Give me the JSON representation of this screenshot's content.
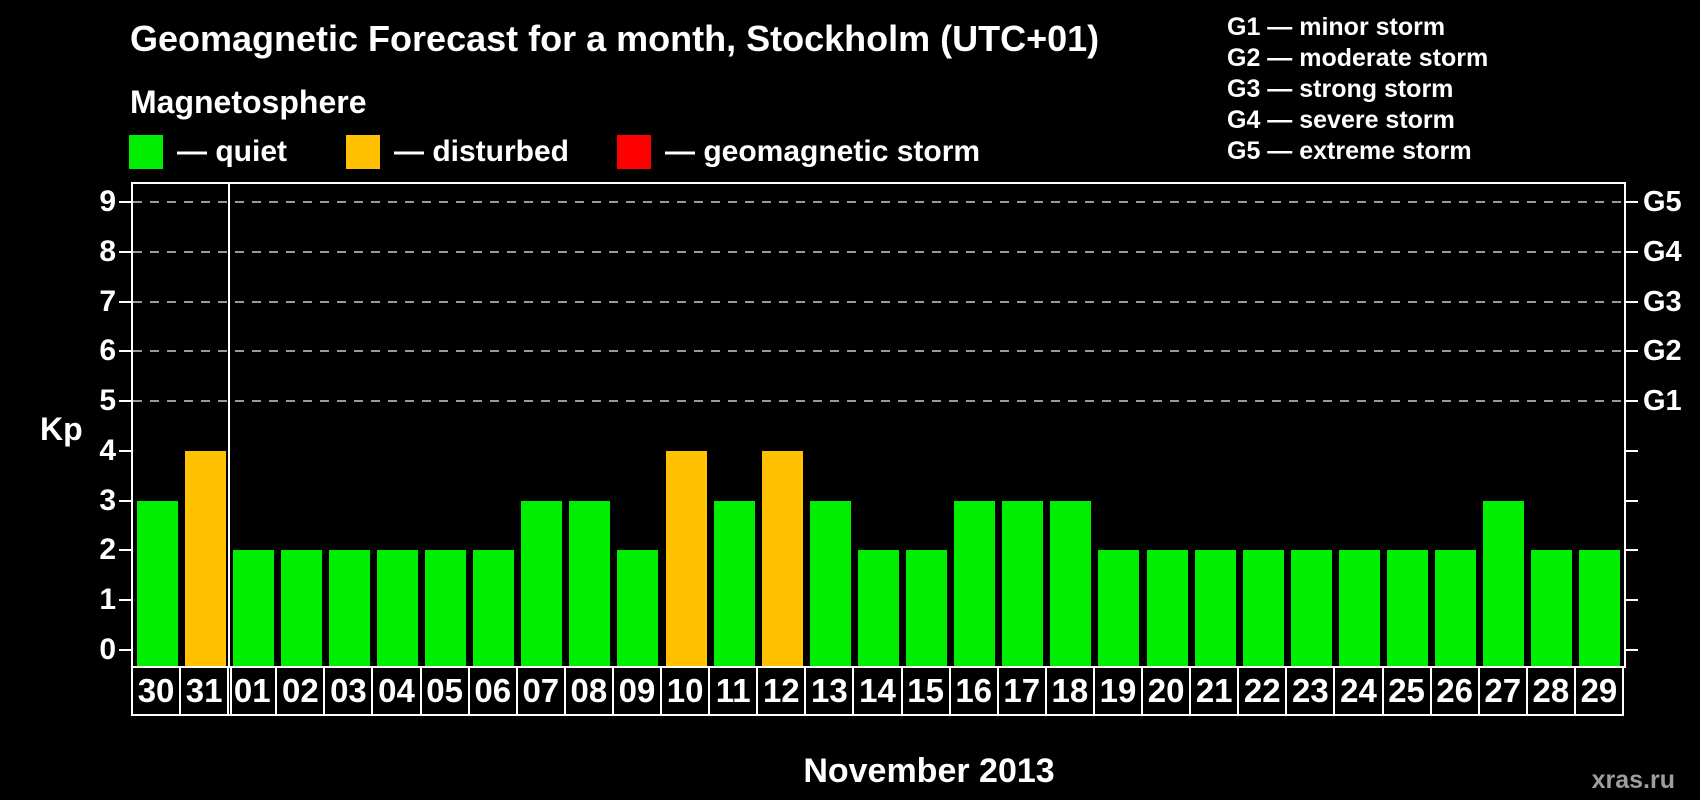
{
  "title": "Geomagnetic Forecast for a month, Stockholm (UTC+01)",
  "subtitle": "Magnetosphere",
  "legend": {
    "items": [
      {
        "name": "quiet",
        "label": "— quiet",
        "color": "#00ee00"
      },
      {
        "name": "disturbed",
        "label": "— disturbed",
        "color": "#ffc100"
      },
      {
        "name": "storm",
        "label": "— geomagnetic storm",
        "color": "#ff0000"
      }
    ]
  },
  "storm_scale": [
    "G1 — minor storm",
    "G2 — moderate storm",
    "G3 — strong storm",
    "G4 — severe storm",
    "G5 — extreme storm"
  ],
  "watermark": "xras.ru",
  "chart_data": {
    "type": "bar",
    "title": "Geomagnetic Forecast for a month, Stockholm (UTC+01)",
    "ylabel": "Kp",
    "xlabel": "November 2013",
    "categories": [
      "30",
      "31",
      "01",
      "02",
      "03",
      "04",
      "05",
      "06",
      "07",
      "08",
      "09",
      "10",
      "11",
      "12",
      "13",
      "14",
      "15",
      "16",
      "17",
      "18",
      "19",
      "20",
      "21",
      "22",
      "23",
      "24",
      "25",
      "26",
      "27",
      "28",
      "29"
    ],
    "values": [
      3,
      4,
      2,
      2,
      2,
      2,
      2,
      2,
      3,
      3,
      2,
      4,
      3,
      4,
      3,
      2,
      2,
      3,
      3,
      3,
      2,
      2,
      2,
      2,
      2,
      2,
      2,
      2,
      3,
      2,
      2
    ],
    "ylim": [
      0,
      9
    ],
    "y_ticks_left": [
      0,
      1,
      2,
      3,
      4,
      5,
      6,
      7,
      8,
      9
    ],
    "y_ticks_right": [
      {
        "kp": 5,
        "label": "G1"
      },
      {
        "kp": 6,
        "label": "G2"
      },
      {
        "kp": 7,
        "label": "G3"
      },
      {
        "kp": 8,
        "label": "G4"
      },
      {
        "kp": 9,
        "label": "G5"
      }
    ],
    "gridlines_at_kp": [
      5,
      6,
      7,
      8,
      9
    ],
    "grid_style": "horizontal dashed gray, only at Kp 5-9",
    "month_separator_after_index": 1,
    "colors": {
      "quiet": "#00ee00",
      "disturbed": "#ffc100",
      "storm": "#ff0000"
    },
    "color_rule": {
      "quiet_kp_max": 3,
      "disturbed_kp_max": 4
    },
    "background": "#000000",
    "legend_position": "top-left"
  }
}
